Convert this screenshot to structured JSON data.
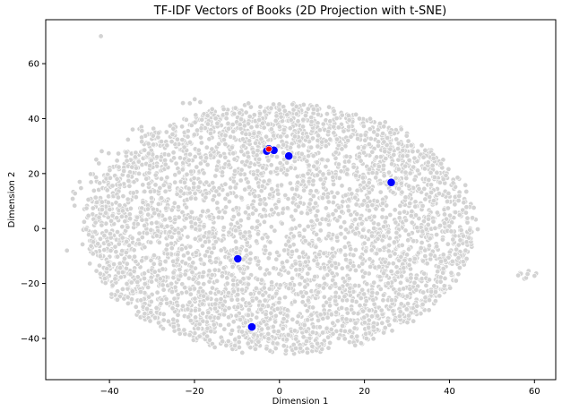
{
  "chart_data": {
    "type": "scatter",
    "title": "TF-IDF Vectors of Books (2D Projection with t-SNE)",
    "xlabel": "Dimension 1",
    "ylabel": "Dimension 2",
    "xlim": [
      -55,
      65
    ],
    "ylim": [
      -55,
      76
    ],
    "xticks": [
      -40,
      -20,
      0,
      20,
      40,
      60
    ],
    "yticks": [
      -40,
      -20,
      0,
      20,
      40,
      60
    ],
    "grid": false,
    "legend": "none",
    "colors": {
      "background_points": "#d3d3d3",
      "background_edge": "#ffffff",
      "highlight_points": "#0000ff",
      "query_point": "#ff0000"
    },
    "background_cloud": {
      "description_note": "dense elliptical cloud of several thousand book vectors",
      "main_center": [
        0,
        0
      ],
      "main_radius": [
        46,
        47
      ],
      "clusters": [
        {
          "x": 58,
          "y": -17
        },
        {
          "x": -42,
          "y": 70
        },
        {
          "x": -21,
          "y": 46
        },
        {
          "x": -50,
          "y": -8
        }
      ]
    },
    "series": [
      {
        "values": [
          {
            "x": -2.5,
            "y": 29.0
          },
          {
            "x": -3.0,
            "y": 28.2
          },
          {
            "x": -1.3,
            "y": 28.5
          },
          {
            "x": 2.2,
            "y": 26.4
          },
          {
            "x": 26.3,
            "y": 16.8
          },
          {
            "x": -9.8,
            "y": -11.0
          },
          {
            "x": -6.5,
            "y": -35.8
          }
        ]
      },
      {
        "values": [
          {
            "x": -2.5,
            "y": 28.9
          }
        ]
      }
    ]
  }
}
